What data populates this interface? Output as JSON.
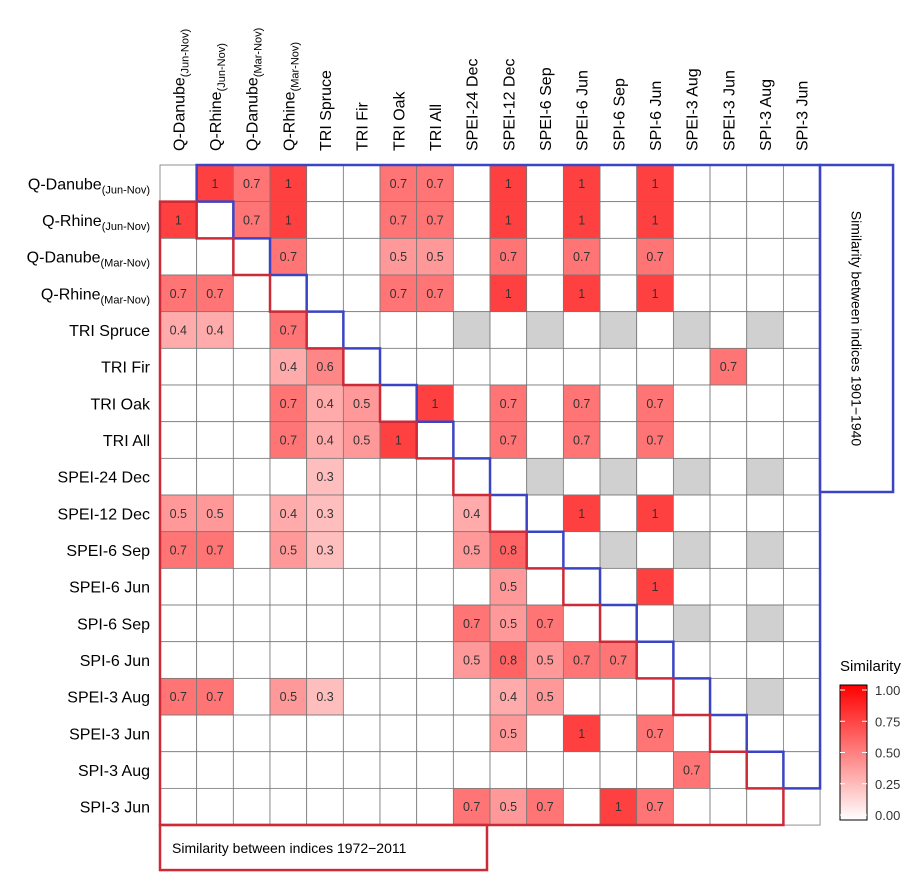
{
  "chart_data": {
    "type": "heatmap",
    "title": "",
    "labels": [
      {
        "main": "Q-Danube",
        "sub": "(Jun-Nov)"
      },
      {
        "main": "Q-Rhine",
        "sub": "(Jun-Nov)"
      },
      {
        "main": "Q-Danube",
        "sub": "(Mar-Nov)"
      },
      {
        "main": "Q-Rhine",
        "sub": "(Mar-Nov)"
      },
      {
        "main": "TRI Spruce",
        "sub": ""
      },
      {
        "main": "TRI Fir",
        "sub": ""
      },
      {
        "main": "TRI Oak",
        "sub": ""
      },
      {
        "main": "TRI All",
        "sub": ""
      },
      {
        "main": "SPEI-24 Dec",
        "sub": ""
      },
      {
        "main": "SPEI-12 Dec",
        "sub": ""
      },
      {
        "main": "SPEI-6 Sep",
        "sub": ""
      },
      {
        "main": "SPEI-6 Jun",
        "sub": ""
      },
      {
        "main": "SPI-6 Sep",
        "sub": ""
      },
      {
        "main": "SPI-6 Jun",
        "sub": ""
      },
      {
        "main": "SPEI-3 Aug",
        "sub": ""
      },
      {
        "main": "SPEI-3 Jun",
        "sub": ""
      },
      {
        "main": "SPI-3 Aug",
        "sub": ""
      },
      {
        "main": "SPI-3 Jun",
        "sub": ""
      }
    ],
    "note": "Matrix rows/cols follow labels order. Upper triangle = 1901-1940, lower triangle = 1972-2011. 0 = blank/no similarity, null = not available (gray).",
    "matrix": [
      [
        0,
        1,
        0.7,
        1,
        0,
        0,
        0.7,
        0.7,
        0,
        1,
        0,
        1,
        0,
        1,
        0,
        0,
        0,
        0
      ],
      [
        1,
        0,
        0.7,
        1,
        0,
        0,
        0.7,
        0.7,
        0,
        1,
        0,
        1,
        0,
        1,
        0,
        0,
        0,
        0
      ],
      [
        0,
        0,
        0,
        0.7,
        0,
        0,
        0.5,
        0.5,
        0,
        0.7,
        0,
        0.7,
        0,
        0.7,
        0,
        0,
        0,
        0
      ],
      [
        0.7,
        0.7,
        0,
        0,
        0,
        0,
        0.7,
        0.7,
        0,
        1,
        0,
        1,
        0,
        1,
        0,
        0,
        0,
        0
      ],
      [
        0.4,
        0.4,
        0,
        0.7,
        0,
        0,
        0,
        0,
        null,
        0,
        null,
        0,
        null,
        0,
        null,
        0,
        null,
        0
      ],
      [
        0,
        0,
        0,
        0.4,
        0.6,
        0,
        0,
        0,
        0,
        0,
        0,
        0,
        0,
        0,
        0,
        0.7,
        0,
        0
      ],
      [
        0,
        0,
        0,
        0.7,
        0.4,
        0.5,
        0,
        1,
        0,
        0.7,
        0,
        0.7,
        0,
        0.7,
        0,
        0,
        0,
        0
      ],
      [
        0,
        0,
        0,
        0.7,
        0.4,
        0.5,
        1,
        0,
        0,
        0.7,
        0,
        0.7,
        0,
        0.7,
        0,
        0,
        0,
        0
      ],
      [
        0,
        0,
        0,
        0,
        0.3,
        0,
        0,
        0,
        0,
        0,
        null,
        0,
        null,
        0,
        null,
        0,
        null,
        0
      ],
      [
        0.5,
        0.5,
        0,
        0.4,
        0.3,
        0,
        0,
        0,
        0.4,
        0,
        0,
        1,
        0,
        1,
        0,
        0,
        0,
        0
      ],
      [
        0.7,
        0.7,
        0,
        0.5,
        0.3,
        0,
        0,
        0,
        0.5,
        0.8,
        0,
        0,
        null,
        0,
        null,
        0,
        null,
        0
      ],
      [
        0,
        0,
        0,
        0,
        0,
        0,
        0,
        0,
        0,
        0.5,
        0,
        0,
        0,
        1,
        0,
        0,
        0,
        0
      ],
      [
        0,
        0,
        0,
        0,
        0,
        0,
        0,
        0,
        0.7,
        0.5,
        0.7,
        0,
        0,
        0,
        null,
        0,
        null,
        0
      ],
      [
        0,
        0,
        0,
        0,
        0,
        0,
        0,
        0,
        0.5,
        0.8,
        0.5,
        0.7,
        0.7,
        0,
        0,
        0,
        0,
        0
      ],
      [
        0.7,
        0.7,
        0,
        0.5,
        0.3,
        0,
        0,
        0,
        0,
        0.4,
        0.5,
        0,
        0,
        0,
        0,
        0,
        null,
        0
      ],
      [
        0,
        0,
        0,
        0,
        0,
        0,
        0,
        0,
        0,
        0.5,
        0,
        1,
        0,
        0.7,
        0,
        0,
        0,
        0
      ],
      [
        0,
        0,
        0,
        0,
        0,
        0,
        0,
        0,
        0,
        0,
        0,
        0,
        0,
        0,
        0.7,
        0,
        0,
        0
      ],
      [
        0,
        0,
        0,
        0,
        0,
        0,
        0,
        0,
        0.7,
        0.5,
        0.7,
        0,
        1,
        0.7,
        0,
        0,
        0,
        0
      ]
    ],
    "legend": {
      "title": "Similarity",
      "placement": "bottom-right",
      "ticks": [
        "1.00",
        "0.75",
        "0.50",
        "0.25",
        "0.00"
      ],
      "range": [
        0,
        1
      ],
      "low_color": "#ffffff",
      "high_color": "#ff0000"
    },
    "upper_box_label": "Similarity between indices 1901−1940",
    "lower_box_label": "Similarity between indices 1972−2011",
    "colors": {
      "upper_outline": "#3b44c4",
      "lower_outline": "#cc2a36",
      "na_fill": "#d0d0d0",
      "grid": "#777777"
    }
  }
}
